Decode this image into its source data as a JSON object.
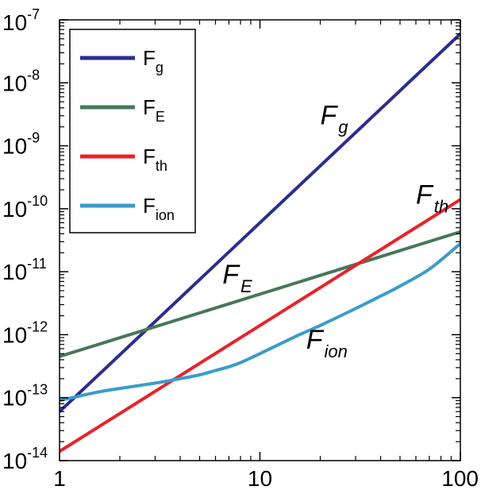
{
  "chart_data": {
    "type": "line",
    "xscale": "log",
    "yscale": "log",
    "xlim": [
      1,
      100
    ],
    "ylim": [
      1e-14,
      1e-07
    ],
    "xticks": [
      {
        "value": 1,
        "label": "1"
      },
      {
        "value": 10,
        "label": "10"
      },
      {
        "value": 100,
        "label": "100"
      }
    ],
    "yticks": [
      {
        "value": 1e-07,
        "base": "10",
        "exp": "-7"
      },
      {
        "value": 1e-08,
        "base": "10",
        "exp": "-8"
      },
      {
        "value": 1e-09,
        "base": "10",
        "exp": "-9"
      },
      {
        "value": 1e-10,
        "base": "10",
        "exp": "-10"
      },
      {
        "value": 1e-11,
        "base": "10",
        "exp": "-11"
      },
      {
        "value": 1e-12,
        "base": "10",
        "exp": "-12"
      },
      {
        "value": 1e-13,
        "base": "10",
        "exp": "-13"
      },
      {
        "value": 1e-14,
        "base": "10",
        "exp": "-14"
      }
    ],
    "grid": false,
    "legend_position": "top-left",
    "series": [
      {
        "name": "Fg",
        "main": "F",
        "sub": "g",
        "color": "#2b2d8e",
        "x": [
          1,
          100
        ],
        "y": [
          6e-14,
          6e-08
        ]
      },
      {
        "name": "FE",
        "main": "F",
        "sub": "E",
        "color": "#47775a",
        "x": [
          1,
          100
        ],
        "y": [
          4.5e-13,
          4.3e-11
        ]
      },
      {
        "name": "Fth",
        "main": "F",
        "sub": "th",
        "color": "#e8232a",
        "x": [
          1,
          100
        ],
        "y": [
          1.4e-14,
          1.4e-10
        ]
      },
      {
        "name": "Fion",
        "main": "F",
        "sub": "ion",
        "color": "#3a9cc8",
        "x": [
          1,
          1.5,
          2,
          3,
          4,
          5,
          6,
          7,
          8,
          10,
          15,
          20,
          30,
          40,
          50,
          70,
          100
        ],
        "y": [
          9e-14,
          1.2e-13,
          1.4e-13,
          1.7e-13,
          2e-13,
          2.3e-13,
          2.7e-13,
          3.1e-13,
          3.6e-13,
          5e-13,
          9.3e-13,
          1.4e-12,
          2.6e-12,
          4.1e-12,
          5.9e-12,
          1.1e-11,
          2.8e-11
        ]
      }
    ],
    "annotations": [
      {
        "main": "F",
        "sub": "g",
        "x": 20,
        "y": 2.2e-09
      },
      {
        "main": "F",
        "sub": "th",
        "x": 60,
        "y": 1.2e-10
      },
      {
        "main": "F",
        "sub": "E",
        "x": 6.5,
        "y": 6.5e-12
      },
      {
        "main": "F",
        "sub": "ion",
        "x": 17,
        "y": 6e-13
      }
    ]
  }
}
